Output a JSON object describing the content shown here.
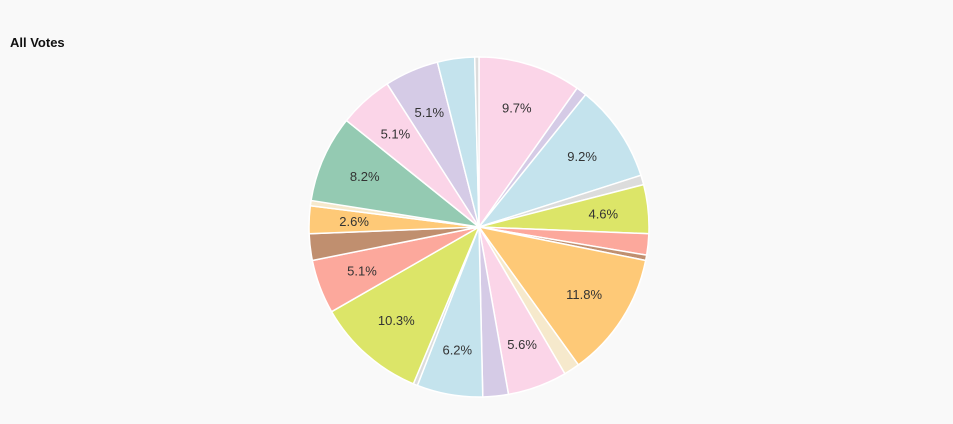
{
  "chart_data": {
    "type": "pie",
    "title": "All Votes",
    "legend": "none",
    "slices": [
      {
        "value": 9.7,
        "label": "9.7%",
        "color": "#fbd5e8"
      },
      {
        "value": 1.0,
        "label": "",
        "color": "#d5cbe6"
      },
      {
        "value": 9.2,
        "label": "9.2%",
        "color": "#c4e3ed"
      },
      {
        "value": 0.9,
        "label": "",
        "color": "#dcdcdc"
      },
      {
        "value": 4.6,
        "label": "4.6%",
        "color": "#dce568"
      },
      {
        "value": 2.0,
        "label": "",
        "color": "#fca89c"
      },
      {
        "value": 0.5,
        "label": "",
        "color": "#c08f6f"
      },
      {
        "value": 11.8,
        "label": "11.8%",
        "color": "#fec977"
      },
      {
        "value": 1.5,
        "label": "",
        "color": "#f6e9cc"
      },
      {
        "value": 5.6,
        "label": "5.6%",
        "color": "#fbd5e8"
      },
      {
        "value": 2.4,
        "label": "",
        "color": "#d5cbe6"
      },
      {
        "value": 6.2,
        "label": "6.2%",
        "color": "#c4e3ed"
      },
      {
        "value": 0.4,
        "label": "",
        "color": "#dcdcdc"
      },
      {
        "value": 10.3,
        "label": "10.3%",
        "color": "#dce568"
      },
      {
        "value": 5.1,
        "label": "5.1%",
        "color": "#fca89c"
      },
      {
        "value": 2.5,
        "label": "",
        "color": "#c08f6f"
      },
      {
        "value": 2.6,
        "label": "2.6%",
        "color": "#fec977"
      },
      {
        "value": 0.5,
        "label": "",
        "color": "#f6e9cc"
      },
      {
        "value": 8.2,
        "label": "8.2%",
        "color": "#94cab2"
      },
      {
        "value": 5.1,
        "label": "5.1%",
        "color": "#fbd5e8"
      },
      {
        "value": 5.1,
        "label": "5.1%",
        "color": "#d5cbe6"
      },
      {
        "value": 3.5,
        "label": "",
        "color": "#c4e3ed"
      },
      {
        "value": 0.4,
        "label": "",
        "color": "#dcdcdc"
      }
    ]
  }
}
